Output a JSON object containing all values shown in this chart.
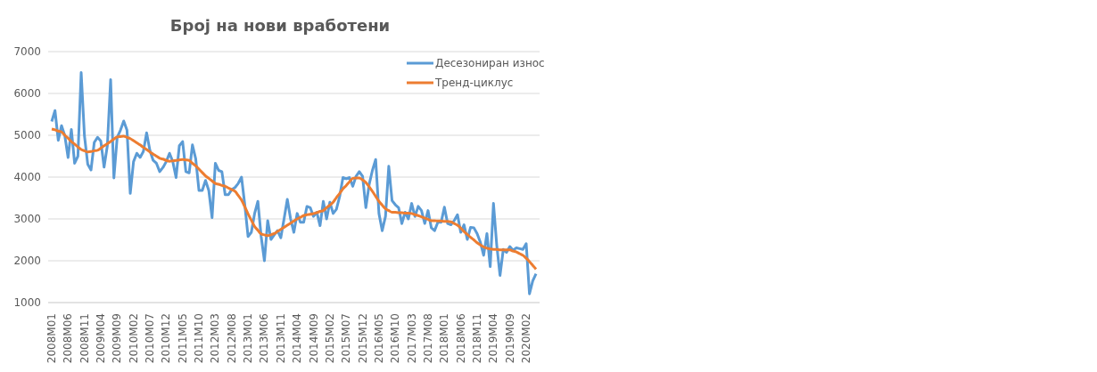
{
  "chart_data": {
    "type": "line",
    "title": "Број на нови вработени",
    "categories": [
      "2008M01",
      null,
      null,
      null,
      null,
      "2008M06",
      null,
      null,
      null,
      null,
      "2008M11",
      null,
      null,
      null,
      null,
      "2009M04",
      null,
      null,
      null,
      null,
      "2009M09",
      null,
      null,
      null,
      null,
      "2010M02",
      null,
      null,
      null,
      null,
      "2010M07",
      null,
      null,
      null,
      null,
      "2010M12",
      null,
      null,
      null,
      null,
      "2011M05",
      null,
      null,
      null,
      null,
      "2011M10",
      null,
      null,
      null,
      null,
      "2012M03",
      null,
      null,
      null,
      null,
      "2012M08",
      null,
      null,
      null,
      null,
      "2013M01",
      null,
      null,
      null,
      null,
      "2013M06",
      null,
      null,
      null,
      null,
      "2013M11",
      null,
      null,
      null,
      null,
      "2014M04",
      null,
      null,
      null,
      null,
      "2014M09",
      null,
      null,
      null,
      null,
      "2015M02",
      null,
      null,
      null,
      null,
      "2015M07",
      null,
      null,
      null,
      null,
      "2015M12",
      null,
      null,
      null,
      null,
      "2016M05",
      null,
      null,
      null,
      null,
      "2016M10",
      null,
      null,
      null,
      null,
      "2017M03",
      null,
      null,
      null,
      null,
      "2017M08",
      null,
      null,
      null,
      null,
      "2018M01",
      null,
      null,
      null,
      null,
      "2018M06",
      null,
      null,
      null,
      null,
      "2018M11",
      null,
      null,
      null,
      null,
      "2019M04",
      null,
      null,
      null,
      null,
      "2019M09",
      null,
      null,
      null,
      null,
      "2020M02",
      null,
      null,
      null
    ],
    "series": [
      {
        "name": "Десезониран износ",
        "color": "#5b9bd5",
        "values": [
          5330,
          5590,
          4880,
          5230,
          4990,
          4470,
          5140,
          4330,
          4500,
          6500,
          4990,
          4310,
          4170,
          4830,
          4950,
          4860,
          4240,
          4750,
          6330,
          3980,
          4950,
          5120,
          5340,
          5120,
          3610,
          4370,
          4570,
          4470,
          4610,
          5060,
          4640,
          4400,
          4330,
          4130,
          4230,
          4370,
          4570,
          4370,
          3990,
          4750,
          4850,
          4130,
          4100,
          4770,
          4440,
          3680,
          3680,
          3920,
          3680,
          3030,
          4330,
          4160,
          4130,
          3580,
          3580,
          3700,
          3750,
          3850,
          4000,
          3340,
          2580,
          2680,
          3130,
          3420,
          2580,
          2000,
          2960,
          2510,
          2620,
          2720,
          2550,
          3000,
          3470,
          3000,
          2680,
          3130,
          2920,
          2920,
          3300,
          3270,
          3060,
          3160,
          2840,
          3420,
          3000,
          3400,
          3130,
          3230,
          3540,
          3990,
          3960,
          3990,
          3780,
          4020,
          4130,
          4020,
          3270,
          3820,
          4160,
          4420,
          3130,
          2720,
          3060,
          4260,
          3440,
          3340,
          3270,
          2890,
          3160,
          3000,
          3370,
          3060,
          3300,
          3200,
          2890,
          3200,
          2790,
          2720,
          2920,
          2920,
          3280,
          2890,
          2860,
          2960,
          3100,
          2680,
          2860,
          2510,
          2800,
          2790,
          2650,
          2440,
          2130,
          2650,
          1860,
          3370,
          2370,
          1650,
          2270,
          2200,
          2340,
          2250,
          2310,
          2290,
          2270,
          2410,
          1210,
          1520,
          1690
        ]
      },
      {
        "name": "Тренд-циклус",
        "color": "#ed7d31",
        "values": [
          5150,
          5130,
          5100,
          5080,
          5000,
          4930,
          4850,
          4790,
          4720,
          4660,
          4630,
          4600,
          4610,
          4630,
          4640,
          4690,
          4750,
          4800,
          4850,
          4910,
          4960,
          4970,
          4980,
          4950,
          4920,
          4870,
          4820,
          4770,
          4710,
          4660,
          4600,
          4550,
          4500,
          4450,
          4430,
          4400,
          4380,
          4390,
          4400,
          4410,
          4420,
          4410,
          4400,
          4330,
          4270,
          4190,
          4110,
          4030,
          3970,
          3910,
          3850,
          3830,
          3800,
          3780,
          3740,
          3700,
          3660,
          3560,
          3450,
          3290,
          3120,
          2970,
          2820,
          2730,
          2640,
          2620,
          2600,
          2620,
          2650,
          2700,
          2750,
          2800,
          2850,
          2900,
          2950,
          3000,
          3040,
          3080,
          3100,
          3110,
          3130,
          3150,
          3180,
          3200,
          3270,
          3330,
          3400,
          3510,
          3610,
          3720,
          3800,
          3890,
          3970,
          3980,
          3980,
          3930,
          3870,
          3770,
          3660,
          3540,
          3420,
          3330,
          3240,
          3200,
          3160,
          3160,
          3150,
          3150,
          3140,
          3140,
          3130,
          3100,
          3080,
          3050,
          3020,
          2990,
          2960,
          2960,
          2950,
          2950,
          2940,
          2940,
          2930,
          2890,
          2850,
          2780,
          2700,
          2630,
          2560,
          2500,
          2430,
          2380,
          2330,
          2300,
          2280,
          2270,
          2270,
          2260,
          2260,
          2260,
          2260,
          2230,
          2210,
          2170,
          2130,
          2060,
          1980,
          1890,
          1800
        ]
      }
    ],
    "ylim": [
      1000,
      7000
    ],
    "yticks": [
      1000,
      2000,
      3000,
      4000,
      5000,
      6000,
      7000
    ],
    "grid": "y",
    "legend": "top right",
    "marker": "none",
    "line_style": "solid"
  }
}
